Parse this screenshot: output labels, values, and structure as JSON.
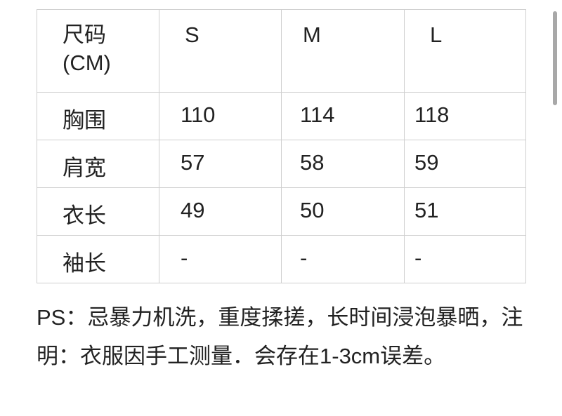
{
  "table": {
    "header": [
      "尺码\n(CM)",
      "S",
      "M",
      "L"
    ],
    "header_lines": [
      "尺码",
      "(CM)"
    ],
    "rows": [
      [
        "胸围",
        "110",
        "114",
        "118"
      ],
      [
        "肩宽",
        "57",
        "58",
        "59"
      ],
      [
        "衣长",
        "49",
        "50",
        "51"
      ],
      [
        "袖长",
        "-",
        "-",
        "-"
      ]
    ]
  },
  "note": "PS：忌暴力机洗，重度揉搓，长时间浸泡暴晒，注明：衣服因手工测量．会存在1-3cm误差。"
}
